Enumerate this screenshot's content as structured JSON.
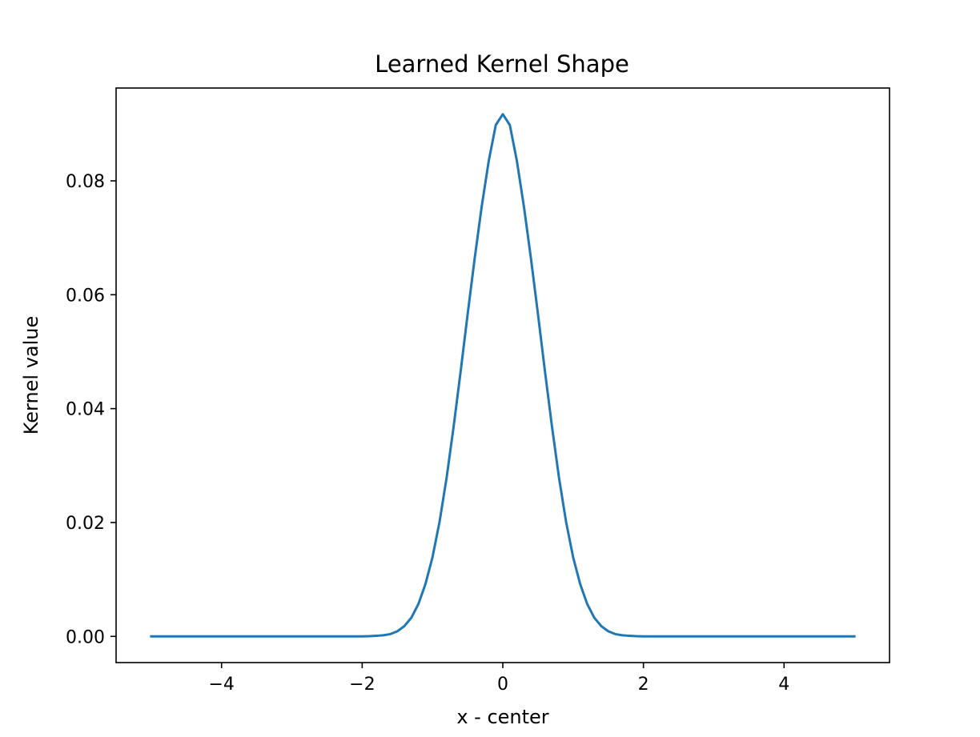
{
  "chart_data": {
    "type": "line",
    "title": "Learned Kernel Shape",
    "xlabel": "x - center",
    "ylabel": "Kernel value",
    "xlim": [
      -5.5,
      5.5
    ],
    "ylim": [
      -0.0046,
      0.0963
    ],
    "xticks": [
      -4,
      -2,
      0,
      2,
      4
    ],
    "xtick_labels": [
      "−4",
      "−2",
      "0",
      "2",
      "4"
    ],
    "yticks": [
      0.0,
      0.02,
      0.04,
      0.06,
      0.08
    ],
    "ytick_labels": [
      "0.00",
      "0.02",
      "0.04",
      "0.06",
      "0.08"
    ],
    "grid": false,
    "legend": null,
    "line_color": "#1f77b4",
    "series": [
      {
        "x": [
          -5.0,
          -4.8,
          -4.6,
          -4.4,
          -4.2,
          -4.0,
          -3.8,
          -3.6,
          -3.4,
          -3.2,
          -3.0,
          -2.8,
          -2.6,
          -2.4,
          -2.2,
          -2.0,
          -1.9,
          -1.8,
          -1.7,
          -1.6,
          -1.5,
          -1.4,
          -1.3,
          -1.2,
          -1.1,
          -1.0,
          -0.9,
          -0.8,
          -0.7,
          -0.6,
          -0.5,
          -0.4,
          -0.3,
          -0.2,
          -0.1,
          0.0,
          0.1,
          0.2,
          0.3,
          0.4,
          0.5,
          0.6,
          0.7,
          0.8,
          0.9,
          1.0,
          1.1,
          1.2,
          1.3,
          1.4,
          1.5,
          1.6,
          1.7,
          1.8,
          1.9,
          2.0,
          2.2,
          2.4,
          2.6,
          2.8,
          3.0,
          3.2,
          3.4,
          3.6,
          3.8,
          4.0,
          4.2,
          4.4,
          4.6,
          4.8,
          5.0
        ],
        "values": [
          0.0,
          0.0,
          0.0,
          0.0,
          0.0,
          0.0,
          0.0,
          0.0,
          0.0,
          0.0,
          0.0,
          0.0,
          0.0,
          0.0,
          0.0,
          0.0,
          3e-05,
          0.0001,
          0.0002,
          0.0004,
          0.0009,
          0.0018,
          0.0033,
          0.0057,
          0.0092,
          0.0139,
          0.0201,
          0.0278,
          0.0368,
          0.0465,
          0.0566,
          0.0664,
          0.0755,
          0.0835,
          0.0898,
          0.0917,
          0.0898,
          0.0835,
          0.0755,
          0.0664,
          0.0566,
          0.0465,
          0.0368,
          0.0278,
          0.0201,
          0.0139,
          0.0092,
          0.0057,
          0.0033,
          0.0018,
          0.0009,
          0.0004,
          0.0002,
          0.0001,
          3e-05,
          0.0,
          0.0,
          0.0,
          0.0,
          0.0,
          0.0,
          0.0,
          0.0,
          0.0,
          0.0,
          0.0,
          0.0,
          0.0,
          0.0,
          0.0,
          0.0
        ]
      }
    ]
  }
}
